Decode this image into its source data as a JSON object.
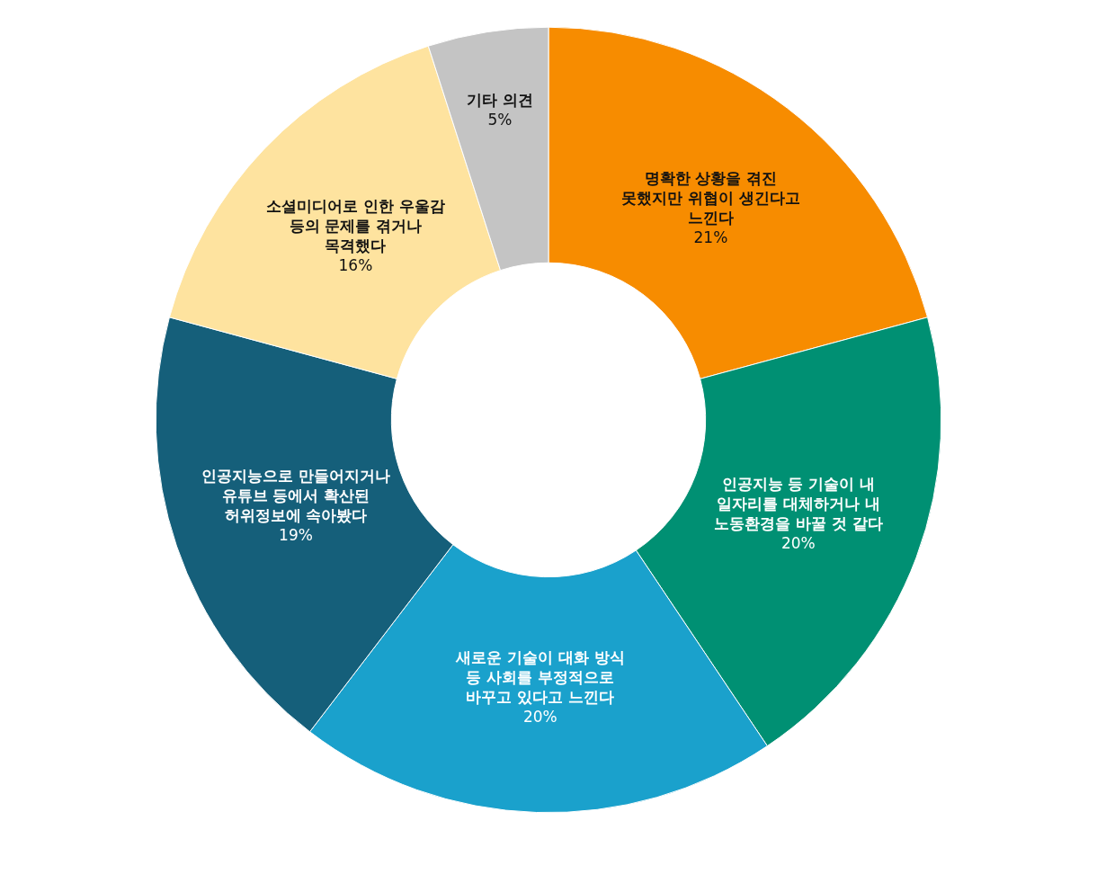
{
  "chart_data": {
    "type": "donut",
    "categories": [
      "명확한 상황을 겪진 못했지만 위협이 생긴다고 느낀다",
      "인공지능 등 기술이 내 일자리를 대체하거나 내 노동환경을 바꿀 것 같다",
      "새로운 기술이 대화 방식 등 사회를 부정적으로 바꾸고 있다고 느낀다",
      "인공지능으로 만들어지거나 유튜브 등에서 확산된 허위정보에 속아봤다",
      "소셜미디어로 인한 우울감 등의 문제를 겪거나 목격했다",
      "기타 의견"
    ],
    "values": [
      21,
      20,
      20,
      19,
      16,
      5
    ],
    "value_labels": [
      "21%",
      "20%",
      "20%",
      "19%",
      "16%",
      "5%"
    ],
    "colors": [
      "#f78c00",
      "#009073",
      "#1aa1cc",
      "#155f7a",
      "#fee39f",
      "#c4c4c4"
    ],
    "legend": false
  }
}
